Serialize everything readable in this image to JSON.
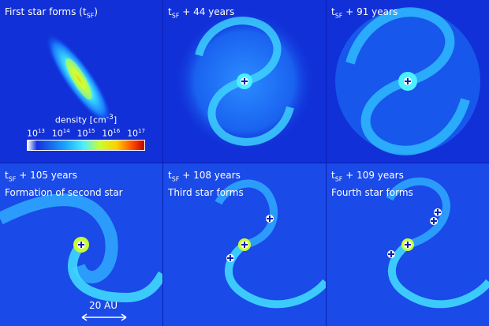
{
  "panels": [
    {
      "label_prefix": "",
      "label_suffix": "First star forms (t",
      "label_sub": "SF",
      "label_tail": ")",
      "line2": ""
    },
    {
      "label_prefix": "t",
      "label_sub": "SF",
      "label_tail": " + 44 years",
      "line2": ""
    },
    {
      "label_prefix": "t",
      "label_sub": "SF",
      "label_tail": " + 91 years",
      "line2": ""
    },
    {
      "label_prefix": "t",
      "label_sub": "SF",
      "label_tail": " + 105 years",
      "line2": "Formation of second star"
    },
    {
      "label_prefix": "t",
      "label_sub": "SF",
      "label_tail": " + 108 years",
      "line2": "Third star forms"
    },
    {
      "label_prefix": "t",
      "label_sub": "SF",
      "label_tail": " + 109 years",
      "line2": "Fourth star forms"
    }
  ],
  "colorbar": {
    "title": "density [cm",
    "title_sup": "-3",
    "title_tail": "]",
    "ticks": [
      {
        "base": "10",
        "exp": "13"
      },
      {
        "base": "10",
        "exp": "14"
      },
      {
        "base": "10",
        "exp": "15"
      },
      {
        "base": "10",
        "exp": "16"
      },
      {
        "base": "10",
        "exp": "17"
      }
    ]
  },
  "scale_bar": {
    "label": "20 AU"
  },
  "colors": {
    "background": "#1130d8",
    "arm_outer": "#18a0ff",
    "arm_inner": "#40e8ff",
    "core": "#e0ff30",
    "hot": "#ff9a00",
    "star_marker": "#ffffff"
  }
}
